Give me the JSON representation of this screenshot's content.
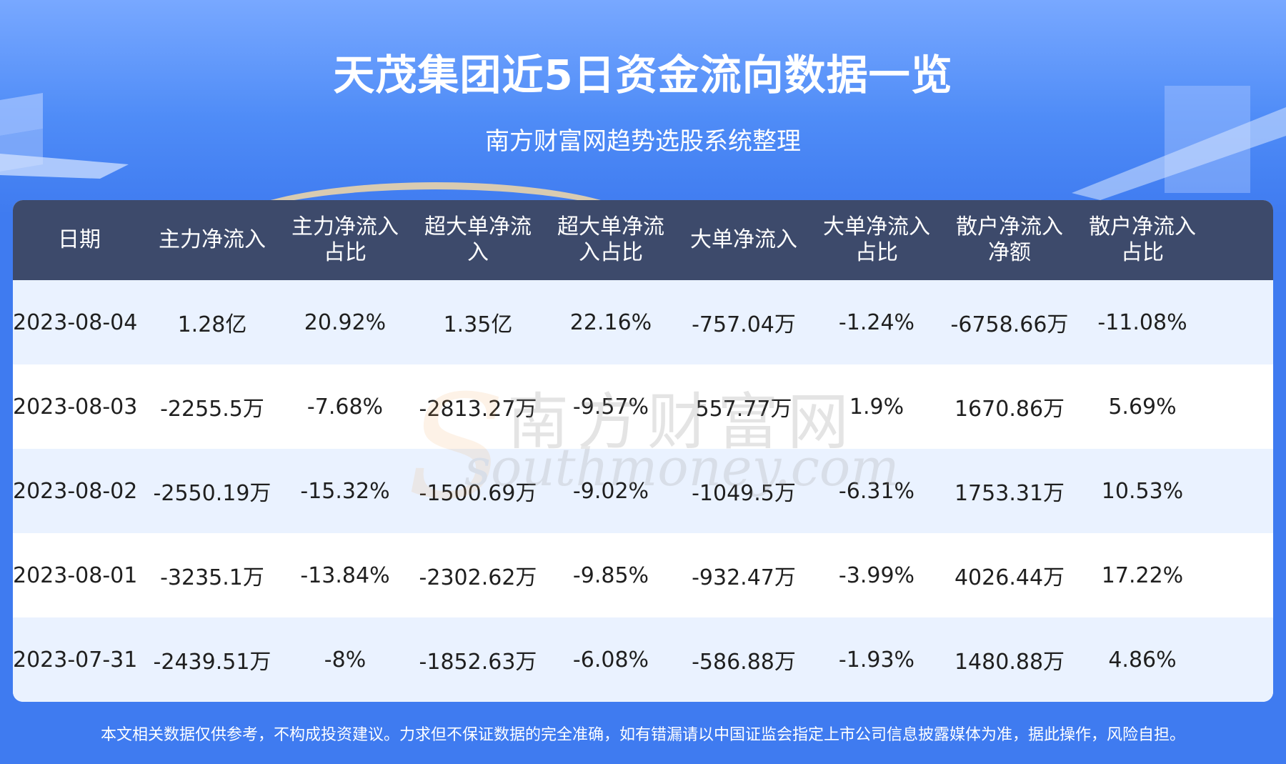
{
  "header": {
    "title": "天茂集团近5日资金流向数据一览",
    "subtitle": "南方财富网趋势选股系统整理"
  },
  "table": {
    "columns": [
      "日期",
      "主力净流入",
      "主力净流入\n占比",
      "超大单净流\n入",
      "超大单净流\n入占比",
      "大单净流入",
      "大单净流入\n占比",
      "散户净流入\n净额",
      "散户净流入\n占比"
    ],
    "rows": [
      [
        "2023-08-04",
        "1.28亿",
        "20.92%",
        "1.35亿",
        "22.16%",
        "-757.04万",
        "-1.24%",
        "-6758.66万",
        "-11.08%"
      ],
      [
        "2023-08-03",
        "-2255.5万",
        "-7.68%",
        "-2813.27万",
        "-9.57%",
        "557.77万",
        "1.9%",
        "1670.86万",
        "5.69%"
      ],
      [
        "2023-08-02",
        "-2550.19万",
        "-15.32%",
        "-1500.69万",
        "-9.02%",
        "-1049.5万",
        "-6.31%",
        "1753.31万",
        "10.53%"
      ],
      [
        "2023-08-01",
        "-3235.1万",
        "-13.84%",
        "-2302.62万",
        "-9.85%",
        "-932.47万",
        "-3.99%",
        "4026.44万",
        "17.22%"
      ],
      [
        "2023-07-31",
        "-2439.51万",
        "-8%",
        "-1852.63万",
        "-6.08%",
        "-586.88万",
        "-1.93%",
        "1480.88万",
        "4.86%"
      ]
    ]
  },
  "watermark": {
    "text_cn": "南方财富网",
    "text_en": "southmoney.com"
  },
  "footer": {
    "disclaimer": "本文相关数据仅供参考，不构成投资建议。力求但不保证数据的完全准确，如有错漏请以中国证监会指定上市公司信息披露媒体为准，据此操作，风险自担。"
  },
  "colors": {
    "background": "#3f7bf0",
    "header_row": "#3d4a6b",
    "row_alt": "#eaf2ff",
    "row": "#ffffff"
  }
}
